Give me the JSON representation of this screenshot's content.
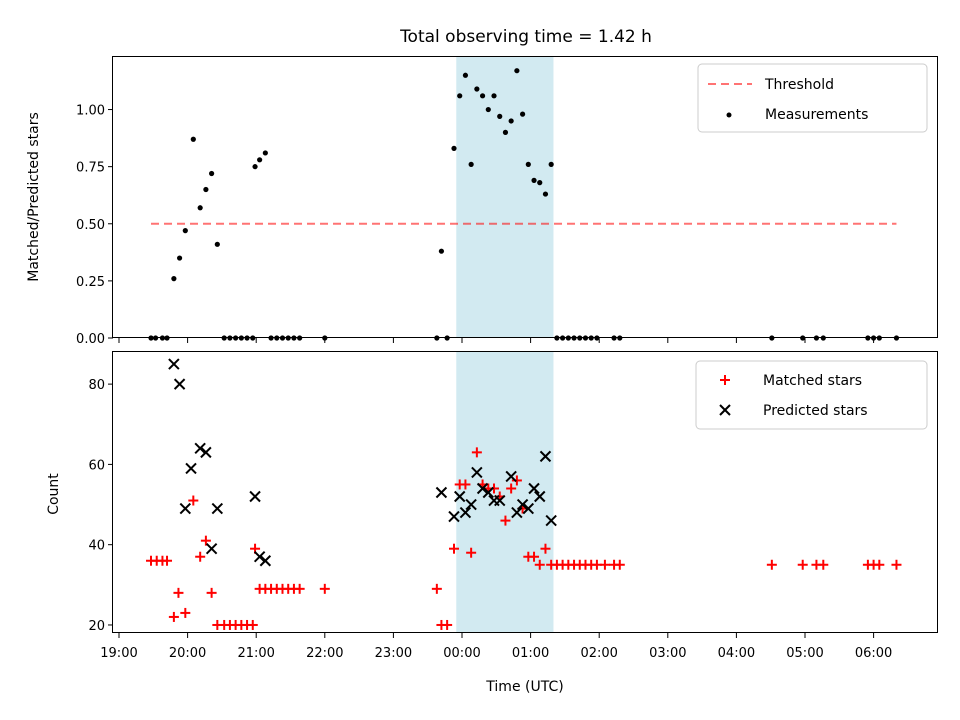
{
  "chart_data": [
    {
      "type": "scatter",
      "title": "Total observing time = 1.42 h",
      "xlabel": "",
      "ylabel": "Matched/Predicted stars",
      "x_range": [
        "19:00",
        "06:55"
      ],
      "ylim": [
        0,
        1.23
      ],
      "yticks": [
        "0.00",
        "0.25",
        "0.50",
        "0.75",
        "1.00"
      ],
      "shaded_span": {
        "x0": "23:55",
        "x1": "01:20",
        "color": "#add8e6"
      },
      "legend_position": "upper right",
      "series": [
        {
          "name": "Threshold",
          "kind": "line",
          "style": "dashed",
          "color": "#ff0000",
          "points": [
            [
              "19:28",
              0.5
            ],
            [
              "06:20",
              0.5
            ]
          ]
        },
        {
          "name": "Measurements",
          "kind": "scatter",
          "color": "#000000",
          "points": [
            [
              "19:28",
              0
            ],
            [
              "19:32",
              0
            ],
            [
              "19:38",
              0
            ],
            [
              "19:42",
              0
            ],
            [
              "19:48",
              0.26
            ],
            [
              "19:53",
              0.35
            ],
            [
              "19:58",
              0.47
            ],
            [
              "20:05",
              0.87
            ],
            [
              "20:11",
              0.57
            ],
            [
              "20:16",
              0.65
            ],
            [
              "20:21",
              0.72
            ],
            [
              "20:26",
              0.41
            ],
            [
              "20:32",
              0
            ],
            [
              "20:37",
              0
            ],
            [
              "20:42",
              0
            ],
            [
              "20:47",
              0
            ],
            [
              "20:52",
              0
            ],
            [
              "20:57",
              0
            ],
            [
              "20:59",
              0.75
            ],
            [
              "21:03",
              0.78
            ],
            [
              "21:08",
              0.81
            ],
            [
              "21:13",
              0
            ],
            [
              "21:18",
              0
            ],
            [
              "21:23",
              0
            ],
            [
              "21:28",
              0
            ],
            [
              "21:33",
              0
            ],
            [
              "21:38",
              0
            ],
            [
              "22:00",
              0
            ],
            [
              "23:38",
              0
            ],
            [
              "23:42",
              0.38
            ],
            [
              "23:47",
              0
            ],
            [
              "23:53",
              0.83
            ],
            [
              "23:58",
              1.06
            ],
            [
              "00:03",
              1.15
            ],
            [
              "00:08",
              0.76
            ],
            [
              "00:13",
              1.09
            ],
            [
              "00:18",
              1.06
            ],
            [
              "00:23",
              1.0
            ],
            [
              "00:28",
              1.06
            ],
            [
              "00:33",
              0.97
            ],
            [
              "00:38",
              0.9
            ],
            [
              "00:43",
              0.95
            ],
            [
              "00:48",
              1.17
            ],
            [
              "00:53",
              0.98
            ],
            [
              "00:58",
              0.76
            ],
            [
              "01:03",
              0.69
            ],
            [
              "01:08",
              0.68
            ],
            [
              "01:13",
              0.63
            ],
            [
              "01:18",
              0.76
            ],
            [
              "01:23",
              0
            ],
            [
              "01:28",
              0
            ],
            [
              "01:33",
              0
            ],
            [
              "01:38",
              0
            ],
            [
              "01:43",
              0
            ],
            [
              "01:48",
              0
            ],
            [
              "01:53",
              0
            ],
            [
              "01:58",
              0
            ],
            [
              "02:13",
              0
            ],
            [
              "02:18",
              0
            ],
            [
              "04:31",
              0
            ],
            [
              "04:58",
              0
            ],
            [
              "05:10",
              0
            ],
            [
              "05:16",
              0
            ],
            [
              "05:55",
              0
            ],
            [
              "06:00",
              0
            ],
            [
              "06:05",
              0
            ],
            [
              "06:20",
              0
            ]
          ]
        }
      ]
    },
    {
      "type": "scatter",
      "title": "",
      "xlabel": "Time (UTC)",
      "ylabel": "Count",
      "x_range": [
        "19:00",
        "06:55"
      ],
      "xticks": [
        "19:00",
        "20:00",
        "21:00",
        "22:00",
        "23:00",
        "00:00",
        "01:00",
        "02:00",
        "03:00",
        "04:00",
        "05:00",
        "06:00"
      ],
      "ylim": [
        18,
        88
      ],
      "yticks": [
        "20",
        "40",
        "60",
        "80"
      ],
      "shaded_span": {
        "x0": "23:55",
        "x1": "01:20",
        "color": "#add8e6"
      },
      "legend_position": "upper right",
      "series": [
        {
          "name": "Matched stars",
          "marker": "plus",
          "color": "#ff0000",
          "points": [
            [
              "19:28",
              36
            ],
            [
              "19:33",
              36
            ],
            [
              "19:38",
              36
            ],
            [
              "19:42",
              36
            ],
            [
              "19:48",
              22
            ],
            [
              "19:52",
              28
            ],
            [
              "19:58",
              23
            ],
            [
              "20:05",
              51
            ],
            [
              "20:11",
              37
            ],
            [
              "20:16",
              41
            ],
            [
              "20:21",
              28
            ],
            [
              "20:26",
              20
            ],
            [
              "20:32",
              20
            ],
            [
              "20:37",
              20
            ],
            [
              "20:42",
              20
            ],
            [
              "20:47",
              20
            ],
            [
              "20:52",
              20
            ],
            [
              "20:57",
              20
            ],
            [
              "20:59",
              39
            ],
            [
              "21:03",
              29
            ],
            [
              "21:08",
              29
            ],
            [
              "21:13",
              29
            ],
            [
              "21:18",
              29
            ],
            [
              "21:23",
              29
            ],
            [
              "21:28",
              29
            ],
            [
              "21:33",
              29
            ],
            [
              "21:38",
              29
            ],
            [
              "22:00",
              29
            ],
            [
              "23:38",
              29
            ],
            [
              "23:42",
              20
            ],
            [
              "23:47",
              20
            ],
            [
              "23:53",
              39
            ],
            [
              "23:58",
              55
            ],
            [
              "00:03",
              55
            ],
            [
              "00:08",
              38
            ],
            [
              "00:13",
              63
            ],
            [
              "00:18",
              55
            ],
            [
              "00:23",
              54
            ],
            [
              "00:28",
              54
            ],
            [
              "00:33",
              52
            ],
            [
              "00:38",
              46
            ],
            [
              "00:43",
              54
            ],
            [
              "00:48",
              56
            ],
            [
              "00:53",
              49
            ],
            [
              "00:58",
              37
            ],
            [
              "01:03",
              37
            ],
            [
              "01:08",
              35
            ],
            [
              "01:13",
              39
            ],
            [
              "01:18",
              35
            ],
            [
              "01:23",
              35
            ],
            [
              "01:28",
              35
            ],
            [
              "01:33",
              35
            ],
            [
              "01:38",
              35
            ],
            [
              "01:43",
              35
            ],
            [
              "01:48",
              35
            ],
            [
              "01:53",
              35
            ],
            [
              "01:58",
              35
            ],
            [
              "02:05",
              35
            ],
            [
              "02:13",
              35
            ],
            [
              "02:18",
              35
            ],
            [
              "04:31",
              35
            ],
            [
              "04:58",
              35
            ],
            [
              "05:10",
              35
            ],
            [
              "05:16",
              35
            ],
            [
              "05:55",
              35
            ],
            [
              "06:00",
              35
            ],
            [
              "06:05",
              35
            ],
            [
              "06:20",
              35
            ]
          ]
        },
        {
          "name": "Predicted stars",
          "marker": "x",
          "color": "#000000",
          "points": [
            [
              "19:48",
              85
            ],
            [
              "19:53",
              80
            ],
            [
              "19:58",
              49
            ],
            [
              "20:03",
              59
            ],
            [
              "20:11",
              64
            ],
            [
              "20:16",
              63
            ],
            [
              "20:21",
              39
            ],
            [
              "20:26",
              49
            ],
            [
              "20:59",
              52
            ],
            [
              "21:03",
              37
            ],
            [
              "21:08",
              36
            ],
            [
              "23:42",
              53
            ],
            [
              "23:53",
              47
            ],
            [
              "23:58",
              52
            ],
            [
              "00:03",
              48
            ],
            [
              "00:08",
              50
            ],
            [
              "00:13",
              58
            ],
            [
              "00:18",
              54
            ],
            [
              "00:23",
              53
            ],
            [
              "00:28",
              51
            ],
            [
              "00:33",
              51
            ],
            [
              "00:43",
              57
            ],
            [
              "00:48",
              48
            ],
            [
              "00:53",
              50
            ],
            [
              "00:58",
              49
            ],
            [
              "01:03",
              54
            ],
            [
              "01:08",
              52
            ],
            [
              "01:13",
              62
            ],
            [
              "01:18",
              46
            ]
          ]
        }
      ]
    }
  ]
}
